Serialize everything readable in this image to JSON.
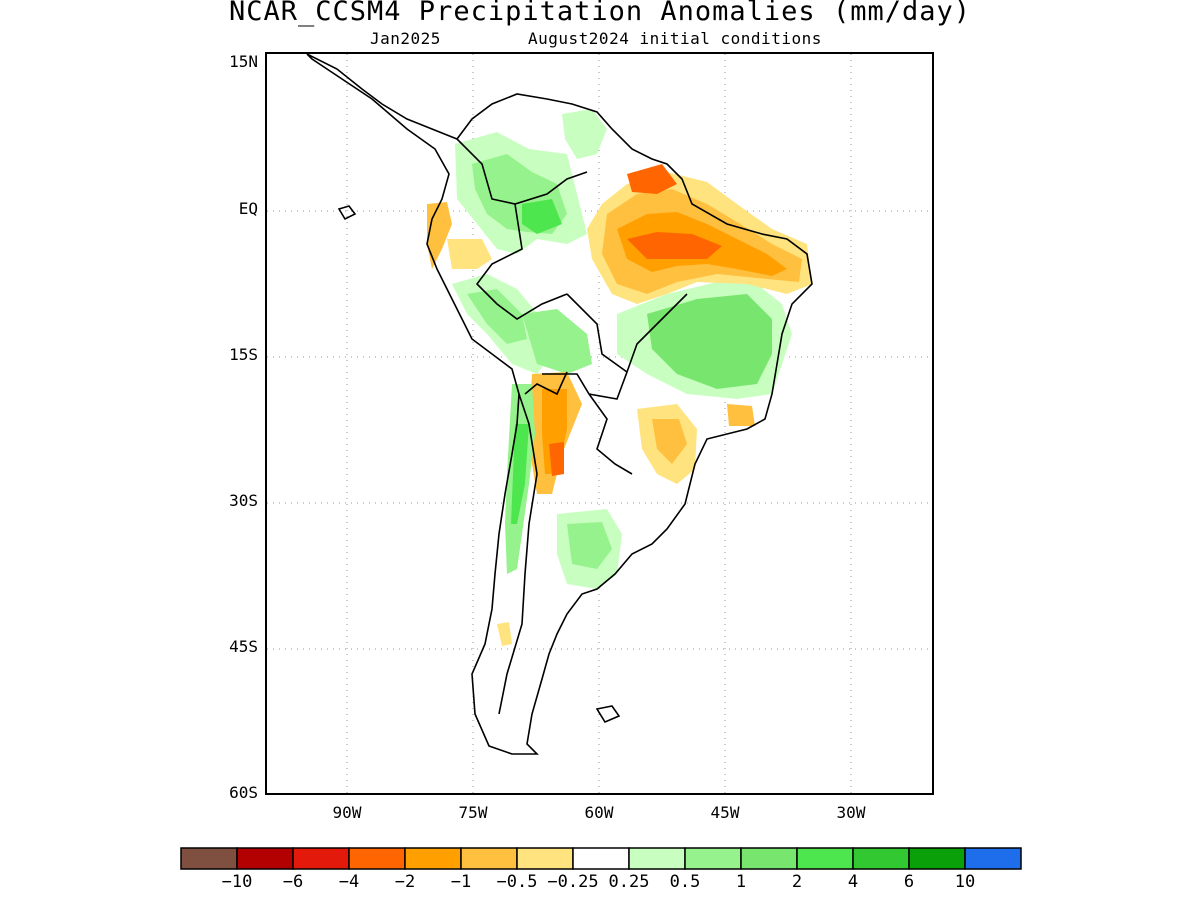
{
  "title": "NCAR_CCSM4 Precipitation Anomalies (mm/day)",
  "subtitle_left": "Jan2025",
  "subtitle_right": "August2024 initial conditions",
  "axes": {
    "lat_labels": [
      "15N",
      "EQ",
      "15S",
      "30S",
      "45S",
      "60S"
    ],
    "lon_labels": [
      "90W",
      "75W",
      "60W",
      "45W",
      "30W"
    ],
    "grid": "dotted"
  },
  "colorbar": {
    "colors": [
      "#7f4f3f",
      "#b30000",
      "#e31a0b",
      "#ff6500",
      "#ffa000",
      "#ffc040",
      "#ffe37f",
      "#ffffff",
      "#c8ffc0",
      "#96f28c",
      "#78e66e",
      "#4ee64e",
      "#32c832",
      "#0aa00a",
      "#1e6eeb"
    ],
    "labels": [
      "−10",
      "−6",
      "−4",
      "−2",
      "−1",
      "−0.5",
      "−0.25",
      "0.25",
      "0.5",
      "1",
      "2",
      "4",
      "6",
      "10"
    ]
  }
}
